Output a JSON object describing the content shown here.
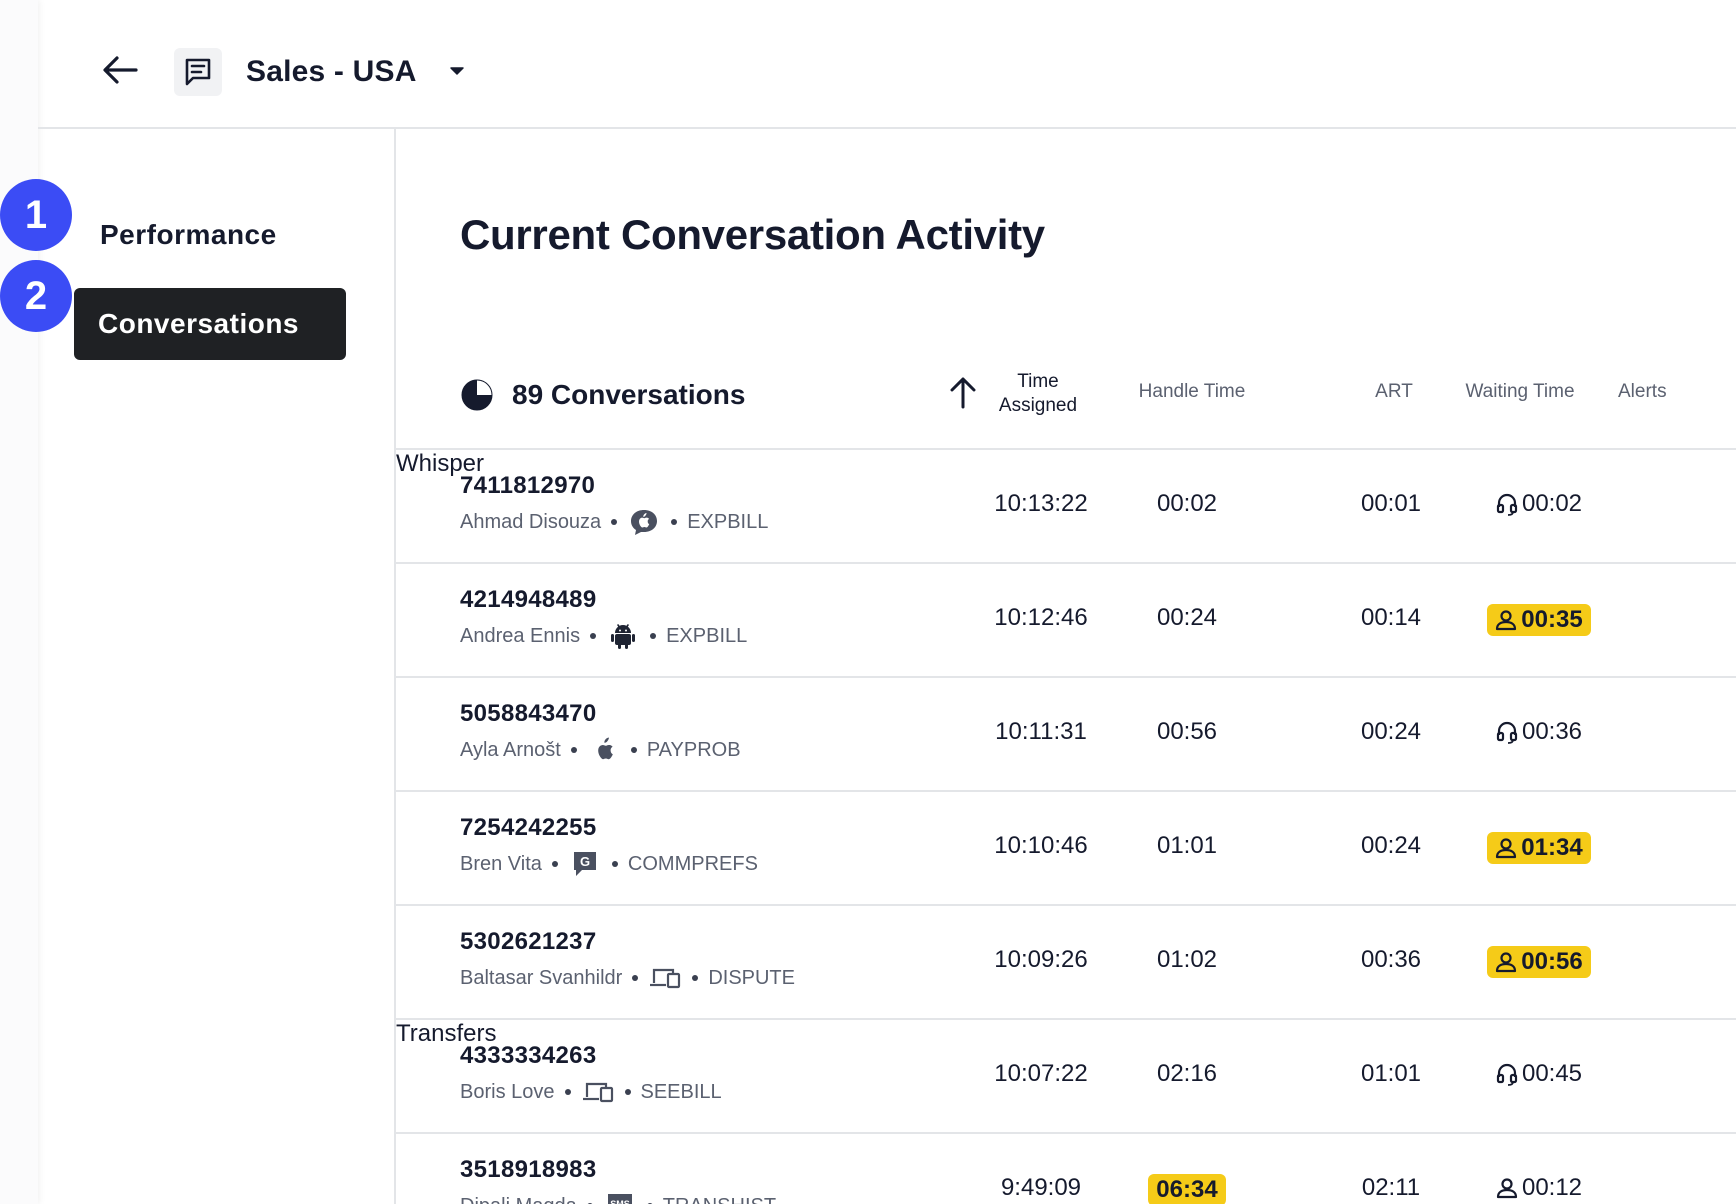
{
  "header": {
    "queue_name": "Sales - USA"
  },
  "sidebar": {
    "steps": [
      "1",
      "2"
    ],
    "items": [
      {
        "label": "Performance"
      },
      {
        "label": "Conversations"
      }
    ]
  },
  "main": {
    "title": "Current Conversation Activity",
    "conversation_count": "89 Conversations",
    "columns": {
      "time_assigned": "Time Assigned",
      "handle_time": "Handle Time",
      "art": "ART",
      "waiting_time": "Waiting Time",
      "alerts": "Alerts"
    },
    "rows": [
      {
        "id": "7411812970",
        "name": "Ahmad Disouza",
        "channel": "ios-chat-icon",
        "intent": "EXPBILL",
        "time_assigned": "10:13:22",
        "handle_time": "00:02",
        "art": "00:01",
        "waiting_time": "00:02",
        "waiting_icon": "headset-icon",
        "waiting_alert": false,
        "alert": "Whisper"
      },
      {
        "id": "4214948489",
        "name": "Andrea Ennis",
        "channel": "android-icon",
        "intent": "EXPBILL",
        "time_assigned": "10:12:46",
        "handle_time": "00:24",
        "art": "00:14",
        "waiting_time": "00:35",
        "waiting_icon": "person-icon",
        "waiting_alert": true,
        "alert": ""
      },
      {
        "id": "5058843470",
        "name": "Ayla Arnošt",
        "channel": "apple-icon",
        "intent": "PAYPROB",
        "time_assigned": "10:11:31",
        "handle_time": "00:56",
        "art": "00:24",
        "waiting_time": "00:36",
        "waiting_icon": "headset-icon",
        "waiting_alert": false,
        "alert": ""
      },
      {
        "id": "7254242255",
        "name": "Bren Vita",
        "channel": "google-icon",
        "intent": "COMMPREFS",
        "time_assigned": "10:10:46",
        "handle_time": "01:01",
        "art": "00:24",
        "waiting_time": "01:34",
        "waiting_icon": "person-icon",
        "waiting_alert": true,
        "alert": ""
      },
      {
        "id": "5302621237",
        "name": "Baltasar Svanhildr",
        "channel": "devices-icon",
        "intent": "DISPUTE",
        "time_assigned": "10:09:26",
        "handle_time": "01:02",
        "art": "00:36",
        "waiting_time": "00:56",
        "waiting_icon": "person-icon",
        "waiting_alert": true,
        "alert": ""
      },
      {
        "id": "4333334263",
        "name": "Boris Love",
        "channel": "devices-icon",
        "intent": "SEEBILL",
        "time_assigned": "10:07:22",
        "handle_time": "02:16",
        "art": "01:01",
        "waiting_time": "00:45",
        "waiting_icon": "headset-icon",
        "waiting_alert": false,
        "alert": "Transfers"
      },
      {
        "id": "3518918983",
        "name": "Dipali Magda",
        "channel": "sms-icon",
        "intent": "TRANSHIST",
        "time_assigned": "9:49:09",
        "handle_time": "06:34",
        "handle_alert": true,
        "art": "02:11",
        "waiting_time": "00:12",
        "waiting_icon": "person-icon",
        "waiting_alert": false,
        "alert": ""
      }
    ]
  },
  "colors": {
    "accent": "#3b4cf5",
    "active_nav": "#1f2124",
    "alert_yellow": "#f5cb18",
    "text": "#151a2d",
    "muted": "#5b6170",
    "divider": "#e3e5e8"
  }
}
